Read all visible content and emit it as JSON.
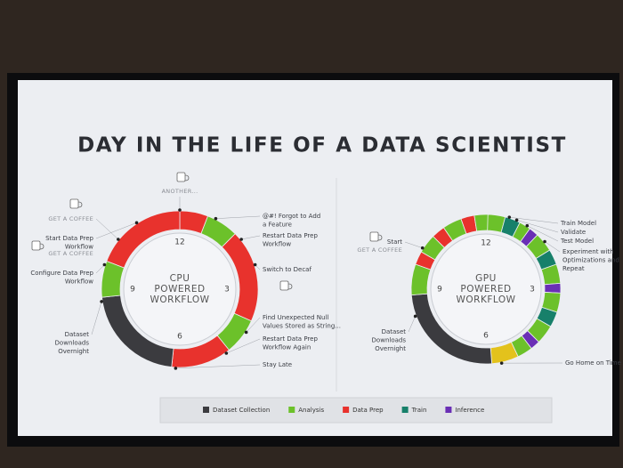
{
  "title": "DAY IN THE LIFE OF A DATA SCIENTIST",
  "legend": [
    {
      "name": "Dataset Collection",
      "color": "#3b3b3f"
    },
    {
      "name": "Analysis",
      "color": "#6cc12a"
    },
    {
      "name": "Data Prep",
      "color": "#e8322d"
    },
    {
      "name": "Train",
      "color": "#17806a"
    },
    {
      "name": "Inference",
      "color": "#6a2fb5"
    }
  ],
  "chart_data": [
    {
      "type": "donut",
      "center_label": [
        "CPU",
        "POWERED",
        "WORKFLOW"
      ],
      "lim": [
        0,
        12
      ],
      "clock_ticks": [
        12,
        3,
        6,
        9
      ],
      "segments": [
        {
          "category": "Data Prep",
          "value": 0.7
        },
        {
          "category": "Analysis",
          "value": 0.8
        },
        {
          "category": "Data Prep",
          "value": 2.3
        },
        {
          "category": "Analysis",
          "value": 0.9
        },
        {
          "category": "Data Prep",
          "value": 1.5
        },
        {
          "category": "Dataset Collection",
          "value": 2.6
        },
        {
          "category": "Analysis",
          "value": 0.9
        },
        {
          "category": "Data Prep",
          "value": 2.3
        }
      ],
      "annotations": [
        {
          "lines": [
            "ANOTHER..."
          ],
          "style": "caption"
        },
        {
          "lines": [
            "GET A COFFEE"
          ],
          "style": "caption"
        },
        {
          "lines": [
            "Start Data Prep",
            "Workflow"
          ]
        },
        {
          "lines": [
            "GET A COFFEE"
          ],
          "style": "caption"
        },
        {
          "lines": [
            "Configure Data Prep",
            "Workflow"
          ]
        },
        {
          "lines": [
            "Dataset",
            "Downloads",
            "Overnight"
          ]
        },
        {
          "lines": [
            "@#! Forgot to Add",
            "a Feature"
          ]
        },
        {
          "lines": [
            "Restart Data Prep",
            "Workflow"
          ]
        },
        {
          "lines": [
            "Switch to Decaf"
          ]
        },
        {
          "lines": [
            "Find Unexpected Null",
            "Values Stored as String..."
          ]
        },
        {
          "lines": [
            "Restart Data Prep",
            "Workflow Again"
          ]
        },
        {
          "lines": [
            "Stay Late"
          ]
        }
      ]
    },
    {
      "type": "donut",
      "center_label": [
        "GPU",
        "POWERED",
        "WORKFLOW"
      ],
      "lim": [
        0,
        12
      ],
      "clock_ticks": [
        12,
        3,
        6,
        9
      ],
      "segments": [
        {
          "category": "Analysis",
          "value": 0.5
        },
        {
          "category": "Train",
          "value": 0.4
        },
        {
          "category": "Analysis",
          "value": 0.3
        },
        {
          "category": "Inference",
          "value": 0.25
        },
        {
          "category": "Analysis",
          "value": 0.5
        },
        {
          "category": "Train",
          "value": 0.4
        },
        {
          "category": "Analysis",
          "value": 0.5
        },
        {
          "category": "Inference",
          "value": 0.25
        },
        {
          "category": "Analysis",
          "value": 0.5
        },
        {
          "category": "Train",
          "value": 0.4
        },
        {
          "category": "Analysis",
          "value": 0.5
        },
        {
          "category": "Inference",
          "value": 0.25
        },
        {
          "category": "Analysis",
          "value": 0.4
        },
        {
          "color": "#e3c21c",
          "value": 0.7
        },
        {
          "category": "Dataset Collection",
          "value": 3.0
        },
        {
          "category": "Analysis",
          "value": 0.8
        },
        {
          "category": "Data Prep",
          "value": 0.35
        },
        {
          "category": "Analysis",
          "value": 0.5
        },
        {
          "category": "Data Prep",
          "value": 0.35
        },
        {
          "category": "Analysis",
          "value": 0.5
        },
        {
          "category": "Data Prep",
          "value": 0.35
        },
        {
          "category": "Analysis",
          "value": 0.35
        }
      ],
      "annotations": [
        {
          "lines": [
            "Start"
          ]
        },
        {
          "lines": [
            "GET A COFFEE"
          ],
          "style": "caption"
        },
        {
          "lines": [
            "Dataset",
            "Downloads",
            "Overnight"
          ]
        },
        {
          "lines": [
            "Train Model"
          ]
        },
        {
          "lines": [
            "Validate"
          ]
        },
        {
          "lines": [
            "Test Model"
          ]
        },
        {
          "lines": [
            "Experiment with",
            "Optimizations and",
            "Repeat"
          ]
        },
        {
          "lines": [
            "Go Home on Time"
          ]
        }
      ]
    }
  ]
}
